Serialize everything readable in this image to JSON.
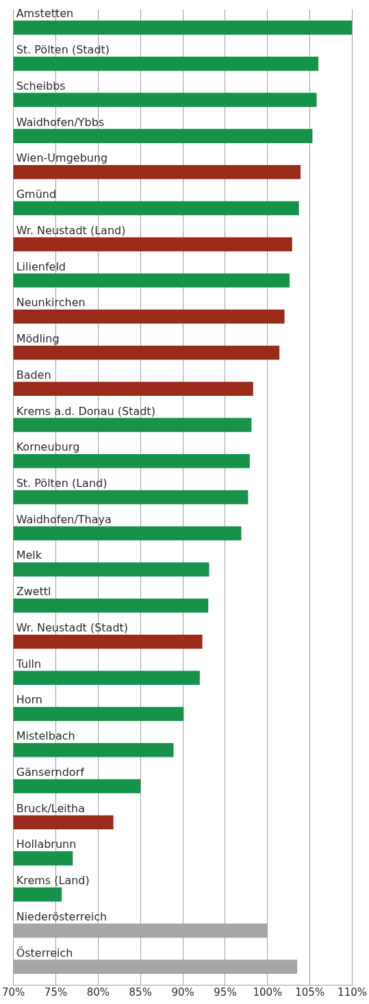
{
  "chart_data": {
    "type": "bar",
    "orientation": "horizontal",
    "categories": [
      "Amstetten",
      "St. Pölten (Stadt)",
      "Scheibbs",
      "Waidhofen/Ybbs",
      "Wien-Umgebung",
      "Gmünd",
      "Wr. Neustadt (Land)",
      "Lilienfeld",
      "Neunkirchen",
      "Mödling",
      "Baden",
      "Krems a.d. Donau (Stadt)",
      "Korneuburg",
      "St. Pölten (Land)",
      "Waidhofen/Thaya",
      "Melk",
      "Zwettl",
      "Wr. Neustadt (Stadt)",
      "Tulln",
      "Horn",
      "Mistelbach",
      "Gänserndorf",
      "Bruck/Leitha",
      "Hollabrunn",
      "Krems (Land)",
      "Niederösterreich",
      "Österreich"
    ],
    "values": [
      110.0,
      106.0,
      105.8,
      105.3,
      103.9,
      103.7,
      102.9,
      102.6,
      102.0,
      101.4,
      98.3,
      98.1,
      97.9,
      97.7,
      96.9,
      93.1,
      93.0,
      92.3,
      92.0,
      90.1,
      88.9,
      85.0,
      81.8,
      77.0,
      75.7,
      100.0,
      103.5
    ],
    "colors": [
      "#17924a",
      "#17924a",
      "#17924a",
      "#17924a",
      "#9a2a1a",
      "#17924a",
      "#9a2a1a",
      "#17924a",
      "#9a2a1a",
      "#9a2a1a",
      "#9a2a1a",
      "#17924a",
      "#17924a",
      "#17924a",
      "#17924a",
      "#17924a",
      "#17924a",
      "#9a2a1a",
      "#17924a",
      "#17924a",
      "#17924a",
      "#17924a",
      "#9a2a1a",
      "#17924a",
      "#17924a",
      "#a6a6a6",
      "#a6a6a6"
    ],
    "xlim": [
      70,
      110
    ],
    "xticks": [
      {
        "value": 70,
        "label": "70%"
      },
      {
        "value": 75,
        "label": "75%"
      },
      {
        "value": 80,
        "label": "80%"
      },
      {
        "value": 85,
        "label": "85%"
      },
      {
        "value": 90,
        "label": "90%"
      },
      {
        "value": 95,
        "label": "95%"
      },
      {
        "value": 100,
        "label": "100%"
      },
      {
        "value": 105,
        "label": "105%"
      },
      {
        "value": 110,
        "label": "110%"
      }
    ],
    "grid": "x"
  }
}
